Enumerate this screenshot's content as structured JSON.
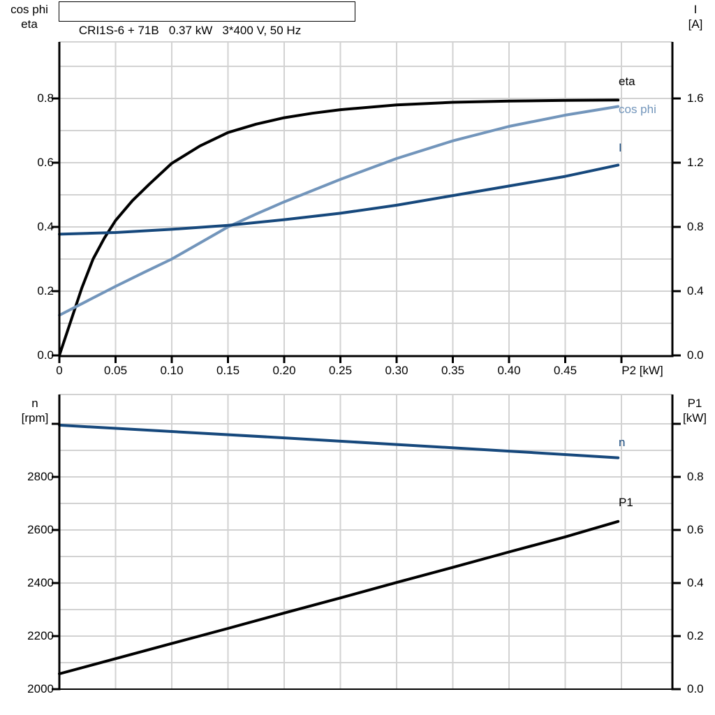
{
  "header": {
    "title": "CRI1S-6 + 71B   0.37 kW   3*400 V, 50 Hz"
  },
  "colors": {
    "black": "#000000",
    "light_blue": "#7295bb",
    "dark_blue": "#16487c",
    "grid": "#d2d2d2",
    "axis": "#000000"
  },
  "top_chart": {
    "left_axis_unit": {
      "line1": "cos phi",
      "line2": "eta"
    },
    "right_axis_unit": {
      "line1": "I",
      "line2": "[A]"
    },
    "x_axis_label": "P2 [kW]",
    "curve_labels": {
      "eta": "eta",
      "cos_phi": "cos phi",
      "current": "I"
    }
  },
  "bottom_chart": {
    "left_axis_unit": {
      "line1": "n",
      "line2": "[rpm]"
    },
    "right_axis_unit": {
      "line1": "P1",
      "line2": "[kW]"
    },
    "curve_labels": {
      "n": "n",
      "p1": "P1"
    }
  },
  "chart_data": [
    {
      "id": "top",
      "type": "line",
      "title": "CRI1S-6 + 71B  0.37 kW  3*400 V, 50 Hz",
      "xlabel": "P2 [kW]",
      "xlim": [
        0,
        0.545
      ],
      "left_axis": {
        "label": "cos phi / eta",
        "range": [
          0,
          0.976
        ],
        "ticks": [
          {
            "v": 0.8,
            "label": "0.8"
          },
          {
            "v": 0.6,
            "label": "0.6"
          },
          {
            "v": 0.4,
            "label": "0.4"
          },
          {
            "v": 0.2,
            "label": "0.2"
          },
          {
            "v": 0.0,
            "label": "0.0"
          }
        ]
      },
      "right_axis": {
        "label": "I [A]",
        "range": [
          0,
          1.952
        ],
        "ticks": [
          {
            "v": 1.6,
            "label": "1.6"
          },
          {
            "v": 1.2,
            "label": "1.2"
          },
          {
            "v": 0.8,
            "label": "0.8"
          },
          {
            "v": 0.4,
            "label": "0.4"
          },
          {
            "v": 0.0,
            "label": "0.0"
          }
        ]
      },
      "x_ticks": [
        {
          "v": 0.0,
          "label": "0"
        },
        {
          "v": 0.05,
          "label": "0.05"
        },
        {
          "v": 0.1,
          "label": "0.10"
        },
        {
          "v": 0.15,
          "label": "0.15"
        },
        {
          "v": 0.2,
          "label": "0.20"
        },
        {
          "v": 0.25,
          "label": "0.25"
        },
        {
          "v": 0.3,
          "label": "0.30"
        },
        {
          "v": 0.35,
          "label": "0.35"
        },
        {
          "v": 0.4,
          "label": "0.40"
        },
        {
          "v": 0.45,
          "label": "0.45"
        },
        {
          "v": 0.5,
          "label": ""
        }
      ],
      "v_grid": [
        0.05,
        0.1,
        0.15,
        0.2,
        0.25,
        0.3,
        0.35,
        0.4,
        0.45,
        0.5
      ],
      "h_grid": [
        0.1,
        0.2,
        0.3,
        0.4,
        0.5,
        0.6,
        0.7,
        0.8,
        0.9
      ],
      "series": [
        {
          "name": "eta",
          "axis": "left",
          "color_key": "black",
          "points": [
            [
              0,
              0
            ],
            [
              0.01,
              0.105
            ],
            [
              0.02,
              0.21
            ],
            [
              0.03,
              0.3
            ],
            [
              0.04,
              0.365
            ],
            [
              0.05,
              0.42
            ],
            [
              0.065,
              0.482
            ],
            [
              0.08,
              0.533
            ],
            [
              0.1,
              0.598
            ],
            [
              0.125,
              0.652
            ],
            [
              0.15,
              0.694
            ],
            [
              0.175,
              0.72
            ],
            [
              0.2,
              0.74
            ],
            [
              0.225,
              0.754
            ],
            [
              0.25,
              0.765
            ],
            [
              0.3,
              0.78
            ],
            [
              0.35,
              0.788
            ],
            [
              0.4,
              0.792
            ],
            [
              0.45,
              0.794
            ],
            [
              0.497,
              0.795
            ]
          ]
        },
        {
          "name": "cos phi",
          "axis": "left",
          "color_key": "light_blue",
          "points": [
            [
              0,
              0.125
            ],
            [
              0.025,
              0.17
            ],
            [
              0.05,
              0.215
            ],
            [
              0.075,
              0.258
            ],
            [
              0.1,
              0.3
            ],
            [
              0.125,
              0.35
            ],
            [
              0.15,
              0.4
            ],
            [
              0.175,
              0.44
            ],
            [
              0.2,
              0.478
            ],
            [
              0.25,
              0.548
            ],
            [
              0.3,
              0.613
            ],
            [
              0.35,
              0.668
            ],
            [
              0.4,
              0.713
            ],
            [
              0.45,
              0.748
            ],
            [
              0.497,
              0.775
            ]
          ]
        },
        {
          "name": "I",
          "axis": "right",
          "color_key": "dark_blue",
          "points": [
            [
              0,
              0.755
            ],
            [
              0.05,
              0.765
            ],
            [
              0.1,
              0.785
            ],
            [
              0.15,
              0.81
            ],
            [
              0.2,
              0.845
            ],
            [
              0.25,
              0.885
            ],
            [
              0.3,
              0.935
            ],
            [
              0.35,
              0.995
            ],
            [
              0.4,
              1.055
            ],
            [
              0.45,
              1.115
            ],
            [
              0.497,
              1.185
            ]
          ]
        }
      ]
    },
    {
      "id": "bottom",
      "type": "line",
      "title": "",
      "xlabel": "",
      "xlim": [
        0,
        0.545
      ],
      "left_axis": {
        "label": "n [rpm]",
        "range": [
          2000,
          3110
        ],
        "ticks": [
          {
            "v": 3000,
            "label": ""
          },
          {
            "v": 2800,
            "label": "2800"
          },
          {
            "v": 2600,
            "label": "2600"
          },
          {
            "v": 2400,
            "label": "2400"
          },
          {
            "v": 2200,
            "label": "2200"
          },
          {
            "v": 2000,
            "label": "2000"
          }
        ]
      },
      "right_axis": {
        "label": "P1 [kW]",
        "range": [
          0,
          1.11
        ],
        "ticks": [
          {
            "v": 1.0,
            "label": ""
          },
          {
            "v": 0.8,
            "label": "0.8"
          },
          {
            "v": 0.6,
            "label": "0.6"
          },
          {
            "v": 0.4,
            "label": "0.4"
          },
          {
            "v": 0.2,
            "label": "0.2"
          },
          {
            "v": 0.0,
            "label": "0.0"
          }
        ]
      },
      "x_ticks": [],
      "v_grid": [
        0.05,
        0.1,
        0.15,
        0.2,
        0.25,
        0.3,
        0.35,
        0.4,
        0.45,
        0.5
      ],
      "h_grid": [
        2100,
        2200,
        2300,
        2400,
        2500,
        2600,
        2700,
        2800,
        2900,
        3000
      ],
      "series": [
        {
          "name": "n",
          "axis": "left",
          "color_key": "dark_blue",
          "points": [
            [
              0,
              2995
            ],
            [
              0.1,
              2971
            ],
            [
              0.2,
              2947
            ],
            [
              0.3,
              2922
            ],
            [
              0.4,
              2897
            ],
            [
              0.497,
              2872
            ]
          ]
        },
        {
          "name": "P1",
          "axis": "right",
          "color_key": "black",
          "points": [
            [
              0,
              0.058
            ],
            [
              0.05,
              0.115
            ],
            [
              0.1,
              0.172
            ],
            [
              0.15,
              0.229
            ],
            [
              0.2,
              0.287
            ],
            [
              0.25,
              0.344
            ],
            [
              0.3,
              0.402
            ],
            [
              0.35,
              0.459
            ],
            [
              0.4,
              0.517
            ],
            [
              0.45,
              0.574
            ],
            [
              0.497,
              0.632
            ]
          ]
        }
      ]
    }
  ]
}
